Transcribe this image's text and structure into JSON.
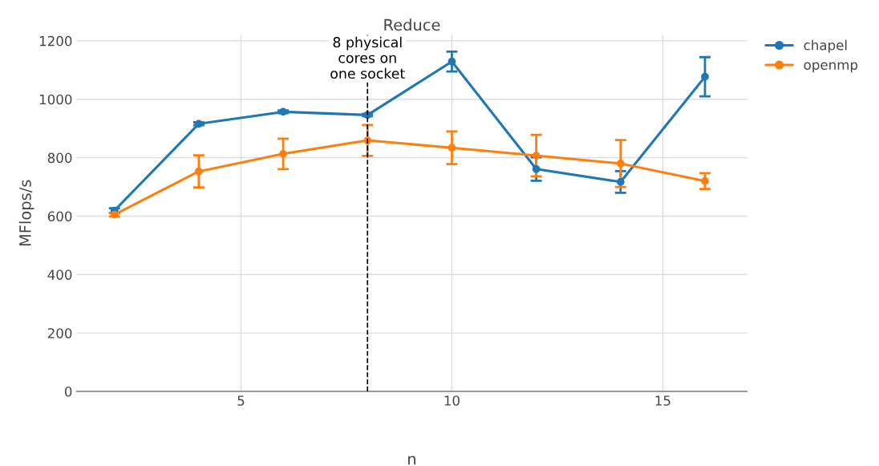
{
  "chart_data": {
    "type": "line",
    "title": "Reduce",
    "xlabel": "n",
    "ylabel": "MFlops/s",
    "x": [
      2,
      4,
      6,
      8,
      10,
      12,
      14,
      16
    ],
    "series": [
      {
        "name": "chapel",
        "color": "#1f77b4",
        "values": [
          619,
          916,
          957,
          946,
          1129,
          761,
          717,
          1077
        ],
        "errors": [
          8,
          5,
          5,
          4,
          34,
          40,
          37,
          67
        ]
      },
      {
        "name": "openmp",
        "color": "#ff7f0e",
        "values": [
          605,
          753,
          813,
          859,
          834,
          807,
          780,
          720
        ],
        "errors": [
          6,
          55,
          52,
          53,
          56,
          71,
          80,
          27
        ]
      }
    ],
    "xlim": [
      1.1,
      17
    ],
    "ylim": [
      0,
      1220
    ],
    "xticks": [
      5,
      10,
      15
    ],
    "yticks": [
      0,
      200,
      400,
      600,
      800,
      1000,
      1200
    ],
    "ref_lines": [
      {
        "axis": "x",
        "value": 8,
        "label": "8 physical\ncores on\none socket",
        "color": "#000000",
        "line_style": "dashed"
      }
    ],
    "grid": true,
    "legend": "top right",
    "marker": "circle",
    "line_style": "solid"
  }
}
